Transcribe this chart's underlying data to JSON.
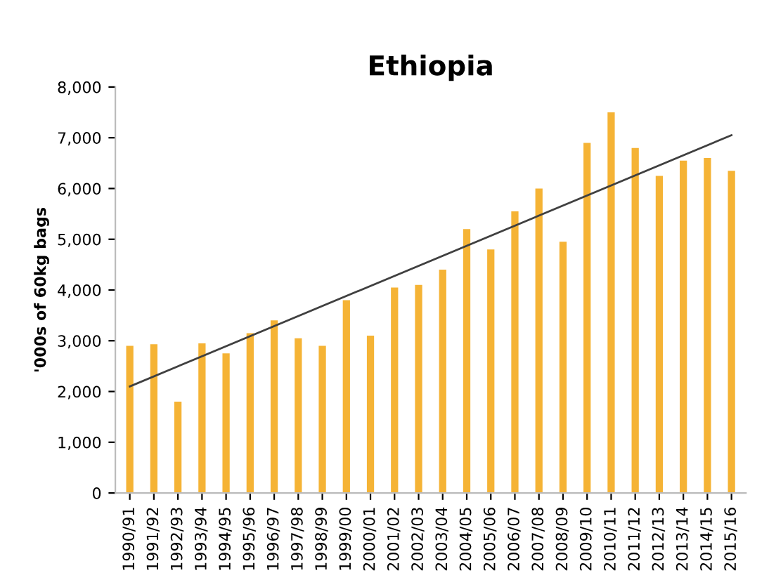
{
  "chart_data": {
    "type": "bar",
    "title": "Ethiopia",
    "ylabel": "'000s of 60kg bags",
    "categories": [
      "1990/91",
      "1991/92",
      "1992/93",
      "1993/94",
      "1994/95",
      "1995/96",
      "1996/97",
      "1997/98",
      "1998/99",
      "1999/00",
      "2000/01",
      "2001/02",
      "2002/03",
      "2003/04",
      "2004/05",
      "2005/06",
      "2006/07",
      "2007/08",
      "2008/09",
      "2009/10",
      "2010/11",
      "2011/12",
      "2012/13",
      "2013/14",
      "2014/15",
      "2015/16"
    ],
    "series": [
      {
        "color": "#f5b335",
        "values": [
          2900,
          2930,
          1800,
          2950,
          2750,
          3150,
          3400,
          3050,
          2900,
          3800,
          3100,
          4050,
          4100,
          4400,
          5200,
          4800,
          5550,
          6000,
          4950,
          6900,
          7500,
          6800,
          6250,
          6550,
          6600,
          6350
        ]
      },
      {
        "type": "line",
        "color": "#404040",
        "x": [
          "1990/91",
          "2015/16"
        ],
        "values": [
          2100,
          7050
        ]
      }
    ],
    "ylim": [
      0,
      8000
    ],
    "yticks": [
      {
        "value": 0,
        "label": "0"
      },
      {
        "value": 1000,
        "label": "1,000"
      },
      {
        "value": 2000,
        "label": "2,000"
      },
      {
        "value": 3000,
        "label": "3,000"
      },
      {
        "value": 4000,
        "label": "4,000"
      },
      {
        "value": 5000,
        "label": "5,000"
      },
      {
        "value": 6000,
        "label": "6,000"
      },
      {
        "value": 7000,
        "label": "7,000"
      },
      {
        "value": 8000,
        "label": "8,000"
      }
    ],
    "grid": false,
    "legend": false
  }
}
